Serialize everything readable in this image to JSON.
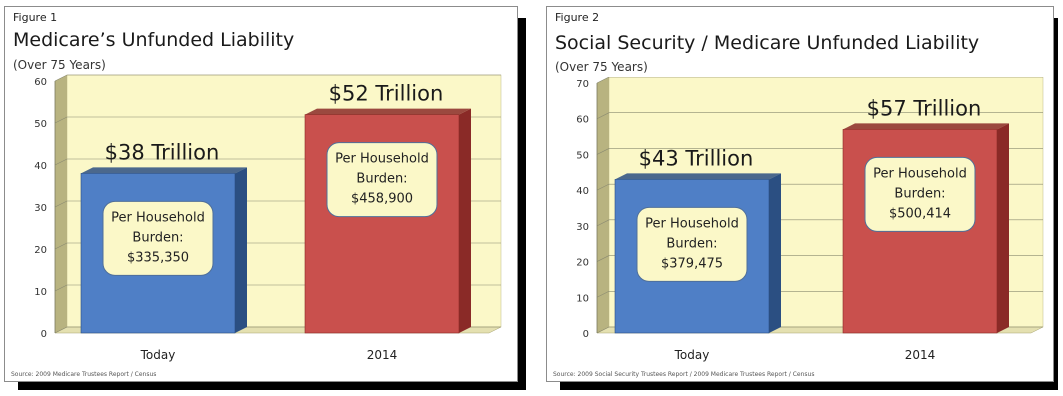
{
  "figures": [
    {
      "label": "Figure 1",
      "title": "Medicare’s Unfunded Liability",
      "subtitle": "(Over 75 Years)",
      "source": "Source: 2009 Medicare Trustees Report / Census",
      "colors": {
        "plot_bg": "#fbf8c8",
        "wall": "#b8b380",
        "bar_front": [
          "#4f7fc6",
          "#c9504d"
        ],
        "bar_side": [
          "#2b4f82",
          "#8a2a27"
        ],
        "callout_bg": "#fbf8c8",
        "callout_border": "#4f6f9a"
      },
      "chart_data": {
        "type": "bar",
        "categories": [
          "Today",
          "2014"
        ],
        "values": [
          38,
          52
        ],
        "ylim": [
          0,
          60
        ],
        "yticks": [
          0,
          10,
          20,
          30,
          40,
          50,
          60
        ],
        "grid": true,
        "value_labels": [
          "$38 Trillion",
          "$52 Trillion"
        ],
        "annotations": [
          [
            "Per Household",
            "Burden:",
            "$335,350"
          ],
          [
            "Per Household",
            "Burden:",
            "$458,900"
          ]
        ]
      }
    },
    {
      "label": "Figure 2",
      "title": "Social Security / Medicare Unfunded Liability",
      "subtitle": "(Over 75 Years)",
      "source": "Source: 2009 Social Security Trustees Report / 2009 Medicare Trustees Report / Census",
      "colors": {
        "plot_bg": "#fbf8c8",
        "wall": "#b8b380",
        "bar_front": [
          "#4f7fc6",
          "#c9504d"
        ],
        "bar_side": [
          "#2b4f82",
          "#8a2a27"
        ],
        "callout_bg": "#fbf8c8",
        "callout_border": "#4f6f9a"
      },
      "chart_data": {
        "type": "bar",
        "categories": [
          "Today",
          "2014"
        ],
        "values": [
          43,
          57
        ],
        "ylim": [
          0,
          70
        ],
        "yticks": [
          0,
          10,
          20,
          30,
          40,
          50,
          60,
          70
        ],
        "grid": true,
        "value_labels": [
          "$43 Trillion",
          "$57 Trillion"
        ],
        "annotations": [
          [
            "Per Household",
            "Burden:",
            "$379,475"
          ],
          [
            "Per Household",
            "Burden:",
            "$500,414"
          ]
        ]
      }
    }
  ]
}
